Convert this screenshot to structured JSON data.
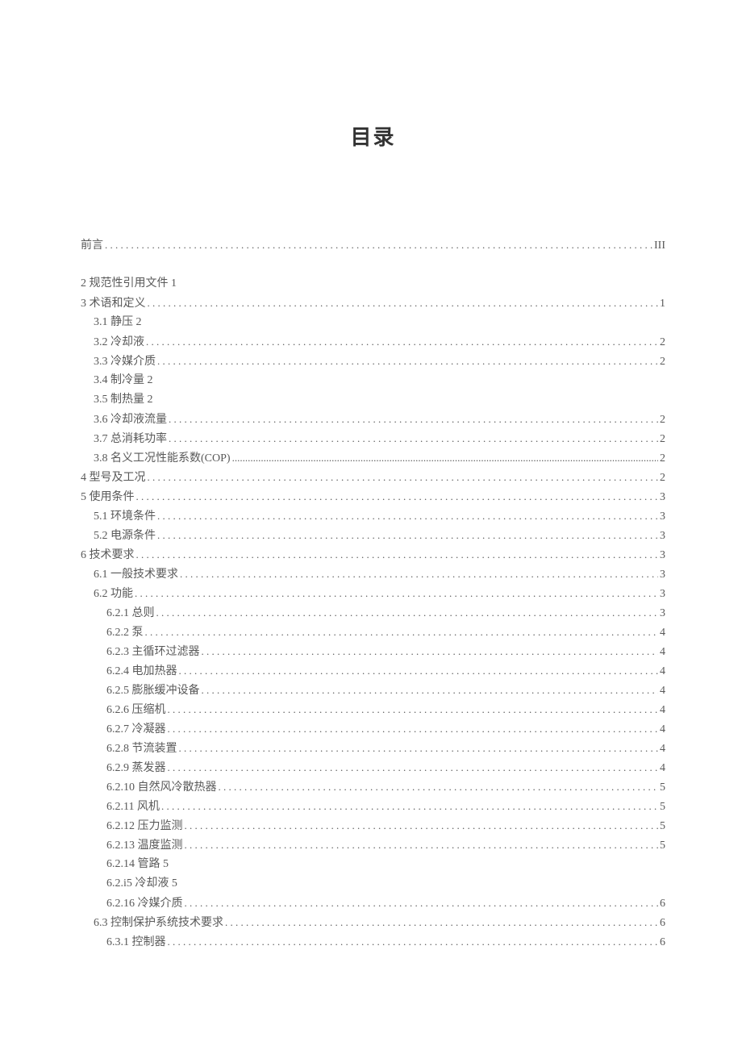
{
  "title": "目录",
  "toc": [
    {
      "label": "前言",
      "page": "III",
      "indent": 0,
      "dots": true,
      "gap": false
    },
    {
      "label": "2 规范性引用文件 1",
      "page": "",
      "indent": 0,
      "dots": false,
      "gap": true
    },
    {
      "label": "3 术语和定义",
      "page": "1",
      "indent": 0,
      "dots": true,
      "gap": false
    },
    {
      "label": "3.1 静压 2",
      "page": "",
      "indent": 1,
      "dots": false,
      "gap": false
    },
    {
      "label": "3.2 冷却液",
      "page": "2",
      "indent": 1,
      "dots": true,
      "gap": false
    },
    {
      "label": "3.3 冷媒介质",
      "page": "2",
      "indent": 1,
      "dots": true,
      "gap": false
    },
    {
      "label": "3.4 制冷量 2",
      "page": "",
      "indent": 1,
      "dots": false,
      "gap": false
    },
    {
      "label": "3.5 制热量 2",
      "page": "",
      "indent": 1,
      "dots": false,
      "gap": false
    },
    {
      "label": "3.6 冷却液流量",
      "page": "2",
      "indent": 1,
      "dots": true,
      "gap": false
    },
    {
      "label": "3.7 总消耗功率",
      "page": "2",
      "indent": 1,
      "dots": true,
      "gap": false
    },
    {
      "label": "3.8 名义工况性能系数(COP) ",
      "page": "2",
      "indent": 1,
      "dots": "tight",
      "gap": false
    },
    {
      "label": "4 型号及工况",
      "page": "2",
      "indent": 0,
      "dots": true,
      "gap": false
    },
    {
      "label": "5 使用条件",
      "page": "3",
      "indent": 0,
      "dots": true,
      "gap": false
    },
    {
      "label": "5.1 环境条件",
      "page": "3",
      "indent": 1,
      "dots": true,
      "gap": false
    },
    {
      "label": "5.2 电源条件",
      "page": "3",
      "indent": 1,
      "dots": true,
      "gap": false
    },
    {
      "label": "6 技术要求",
      "page": "3",
      "indent": 0,
      "dots": true,
      "gap": false
    },
    {
      "label": "6.1 一般技术要求",
      "page": "3",
      "indent": 1,
      "dots": true,
      "gap": false
    },
    {
      "label": "6.2 功能",
      "page": "3",
      "indent": 1,
      "dots": true,
      "gap": false
    },
    {
      "label": "6.2.1 总则",
      "page": "3",
      "indent": 2,
      "dots": true,
      "gap": false
    },
    {
      "label": "6.2.2 泵",
      "page": "4",
      "indent": 2,
      "dots": true,
      "gap": false
    },
    {
      "label": "6.2.3 主循环过滤器",
      "page": "4",
      "indent": 2,
      "dots": true,
      "gap": false
    },
    {
      "label": "6.2.4 电加热器",
      "page": "4",
      "indent": 2,
      "dots": true,
      "gap": false
    },
    {
      "label": "6.2.5 膨胀缓冲设备",
      "page": "4",
      "indent": 2,
      "dots": true,
      "gap": false
    },
    {
      "label": "6.2.6 压缩机",
      "page": "4",
      "indent": 2,
      "dots": true,
      "gap": false
    },
    {
      "label": "6.2.7 冷凝器",
      "page": "4",
      "indent": 2,
      "dots": true,
      "gap": false
    },
    {
      "label": "6.2.8 节流装置",
      "page": "4",
      "indent": 2,
      "dots": true,
      "gap": false
    },
    {
      "label": "6.2.9 蒸发器",
      "page": "4",
      "indent": 2,
      "dots": true,
      "gap": false
    },
    {
      "label": "6.2.10 自然风冷散热器",
      "page": "5",
      "indent": 2,
      "dots": true,
      "gap": false
    },
    {
      "label": "6.2.11 风机",
      "page": "5",
      "indent": 2,
      "dots": true,
      "gap": false
    },
    {
      "label": "6.2.12 压力监测",
      "page": "5",
      "indent": 2,
      "dots": true,
      "gap": false
    },
    {
      "label": "6.2.13 温度监测",
      "page": "5",
      "indent": 2,
      "dots": true,
      "gap": false
    },
    {
      "label": "6.2.14 管路 5",
      "page": "",
      "indent": 2,
      "dots": false,
      "gap": false
    },
    {
      "label": "6.2.i5 冷却液 5",
      "page": "",
      "indent": 2,
      "dots": false,
      "gap": false
    },
    {
      "label": "6.2.16 冷媒介质",
      "page": "6",
      "indent": 2,
      "dots": true,
      "gap": false
    },
    {
      "label": "6.3 控制保护系统技术要求",
      "page": "6",
      "indent": 1,
      "dots": true,
      "gap": false
    },
    {
      "label": "6.3.1 控制器",
      "page": "6",
      "indent": 2,
      "dots": true,
      "gap": false
    }
  ]
}
